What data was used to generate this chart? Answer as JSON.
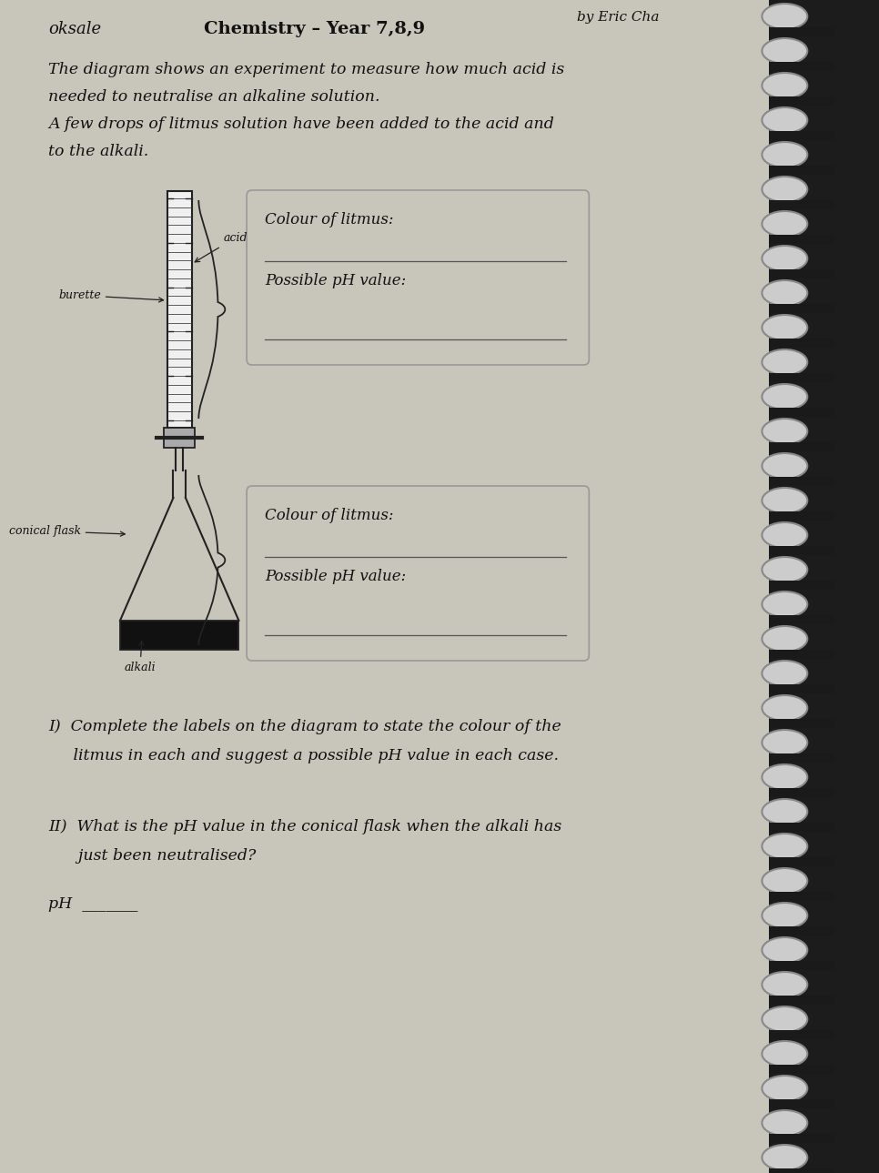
{
  "bg_color": "#c8c5bb",
  "page_color": "#dedad2",
  "title_left": "oksale",
  "title_center": "Chemistry – Year 7,8,9",
  "title_right": "by Eric Cha",
  "intro_line1": "The diagram shows an experiment to measure how much acid is",
  "intro_line2": "needed to neutralise an alkaline solution.",
  "intro_line3": "A few drops of litmus solution have been added to the acid and",
  "intro_line4": "to the alkali.",
  "label_acid": "acid",
  "label_burette": "burette",
  "label_conical_flask": "conical flask",
  "label_alkali": "alkali",
  "box1_line1": "Colour of litmus:",
  "box1_line2": "Possible pH value:",
  "box2_line1": "Colour of litmus:",
  "box2_line2": "Possible pH value:",
  "question_I": "I)  Complete the labels on the diagram to state the colour of the",
  "question_I2": "     litmus in each and suggest a possible pH value in each case.",
  "question_II": "II)  What is the pH value in the conical flask when the alkali has",
  "question_II2": "      just been neutralised?",
  "question_pH": "pH  _______",
  "text_color": "#111111",
  "line_color": "#222222",
  "binding_dark": "#1a1a1a",
  "binding_mid": "#555555",
  "binding_light": "#888888"
}
